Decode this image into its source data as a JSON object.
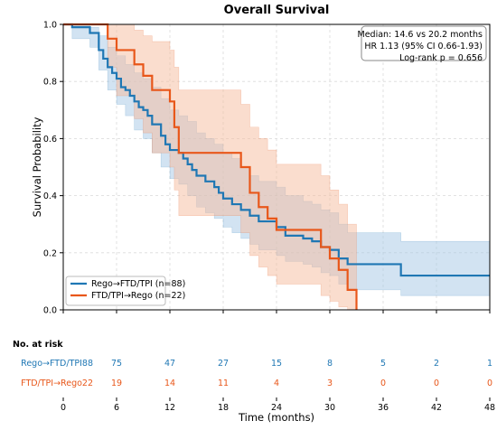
{
  "chart_data": {
    "type": "kaplan-meier",
    "title": "Overall Survival",
    "xlabel": "Time (months)",
    "ylabel": "Survival Probability",
    "xlim": [
      0,
      48
    ],
    "ylim": [
      0,
      1.0
    ],
    "yticks": [
      "0.0",
      "0.2",
      "0.4",
      "0.6",
      "0.8",
      "1.0"
    ],
    "xticks": [
      "0",
      "6",
      "12",
      "18",
      "24",
      "30",
      "36",
      "42",
      "48"
    ],
    "grid": true,
    "legend_position": "lower-left",
    "annotation": [
      "Median: 14.6 vs 20.2 months",
      "HR 1.13 (95% CI 0.66-1.93)",
      "Log-rank p = 0.656"
    ],
    "series": [
      {
        "name": "Rego→FTD/TPI (n=88)",
        "color": "#1f77b4",
        "band_color": "#a6c8e6",
        "points": [
          [
            0,
            1.0
          ],
          [
            1,
            0.99
          ],
          [
            3,
            0.97
          ],
          [
            4,
            0.91
          ],
          [
            4.5,
            0.88
          ],
          [
            5,
            0.85
          ],
          [
            5.5,
            0.83
          ],
          [
            6,
            0.81
          ],
          [
            6.5,
            0.78
          ],
          [
            7,
            0.77
          ],
          [
            7.5,
            0.75
          ],
          [
            8,
            0.73
          ],
          [
            8.5,
            0.71
          ],
          [
            9,
            0.7
          ],
          [
            9.5,
            0.68
          ],
          [
            10,
            0.65
          ],
          [
            11,
            0.61
          ],
          [
            11.5,
            0.58
          ],
          [
            12,
            0.56
          ],
          [
            13,
            0.55
          ],
          [
            13.5,
            0.53
          ],
          [
            14,
            0.51
          ],
          [
            14.5,
            0.49
          ],
          [
            15,
            0.47
          ],
          [
            16,
            0.45
          ],
          [
            17,
            0.43
          ],
          [
            17.5,
            0.41
          ],
          [
            18,
            0.39
          ],
          [
            19,
            0.37
          ],
          [
            20,
            0.35
          ],
          [
            21,
            0.33
          ],
          [
            22,
            0.31
          ],
          [
            24,
            0.29
          ],
          [
            25,
            0.26
          ],
          [
            27,
            0.25
          ],
          [
            28,
            0.24
          ],
          [
            29,
            0.22
          ],
          [
            30,
            0.21
          ],
          [
            31,
            0.18
          ],
          [
            32,
            0.16
          ],
          [
            37,
            0.16
          ],
          [
            38,
            0.12
          ],
          [
            48,
            0.12
          ]
        ],
        "ci_upper": [
          [
            0,
            1.0
          ],
          [
            3,
            0.99
          ],
          [
            4,
            0.96
          ],
          [
            5,
            0.92
          ],
          [
            6,
            0.89
          ],
          [
            7,
            0.86
          ],
          [
            8,
            0.83
          ],
          [
            9,
            0.81
          ],
          [
            10,
            0.78
          ],
          [
            11,
            0.74
          ],
          [
            12,
            0.7
          ],
          [
            13,
            0.68
          ],
          [
            14,
            0.66
          ],
          [
            15,
            0.62
          ],
          [
            16,
            0.6
          ],
          [
            17,
            0.58
          ],
          [
            18,
            0.55
          ],
          [
            19,
            0.53
          ],
          [
            20,
            0.5
          ],
          [
            21,
            0.47
          ],
          [
            22,
            0.45
          ],
          [
            24,
            0.43
          ],
          [
            25,
            0.4
          ],
          [
            27,
            0.38
          ],
          [
            28,
            0.37
          ],
          [
            29,
            0.35
          ],
          [
            30,
            0.34
          ],
          [
            31,
            0.3
          ],
          [
            32,
            0.27
          ],
          [
            37,
            0.27
          ],
          [
            38,
            0.24
          ],
          [
            48,
            0.24
          ]
        ],
        "ci_lower": [
          [
            0,
            1.0
          ],
          [
            1,
            0.95
          ],
          [
            3,
            0.92
          ],
          [
            4,
            0.84
          ],
          [
            5,
            0.77
          ],
          [
            6,
            0.72
          ],
          [
            7,
            0.68
          ],
          [
            8,
            0.63
          ],
          [
            9,
            0.6
          ],
          [
            10,
            0.55
          ],
          [
            11,
            0.5
          ],
          [
            12,
            0.46
          ],
          [
            13,
            0.44
          ],
          [
            14,
            0.4
          ],
          [
            15,
            0.36
          ],
          [
            16,
            0.34
          ],
          [
            17,
            0.32
          ],
          [
            18,
            0.29
          ],
          [
            19,
            0.27
          ],
          [
            20,
            0.25
          ],
          [
            21,
            0.23
          ],
          [
            22,
            0.21
          ],
          [
            24,
            0.19
          ],
          [
            25,
            0.17
          ],
          [
            27,
            0.16
          ],
          [
            28,
            0.15
          ],
          [
            29,
            0.13
          ],
          [
            30,
            0.12
          ],
          [
            31,
            0.09
          ],
          [
            32,
            0.07
          ],
          [
            37,
            0.07
          ],
          [
            38,
            0.05
          ],
          [
            48,
            0.05
          ]
        ]
      },
      {
        "name": "FTD/TPI→Rego (n=22)",
        "color": "#e8571a",
        "band_color": "#f6bb9d",
        "points": [
          [
            0,
            1.0
          ],
          [
            5,
            0.95
          ],
          [
            6,
            0.91
          ],
          [
            8,
            0.86
          ],
          [
            9,
            0.82
          ],
          [
            10,
            0.77
          ],
          [
            12,
            0.73
          ],
          [
            12.5,
            0.64
          ],
          [
            13,
            0.55
          ],
          [
            20,
            0.5
          ],
          [
            21,
            0.41
          ],
          [
            22,
            0.36
          ],
          [
            23,
            0.32
          ],
          [
            24,
            0.28
          ],
          [
            29,
            0.22
          ],
          [
            30,
            0.18
          ],
          [
            31,
            0.14
          ],
          [
            32,
            0.07
          ],
          [
            33,
            0.0
          ]
        ],
        "ci_upper": [
          [
            0,
            1.0
          ],
          [
            6,
            1.0
          ],
          [
            8,
            0.98
          ],
          [
            9,
            0.96
          ],
          [
            10,
            0.94
          ],
          [
            12,
            0.91
          ],
          [
            12.5,
            0.85
          ],
          [
            13,
            0.77
          ],
          [
            20,
            0.72
          ],
          [
            21,
            0.64
          ],
          [
            22,
            0.6
          ],
          [
            23,
            0.56
          ],
          [
            24,
            0.51
          ],
          [
            29,
            0.47
          ],
          [
            30,
            0.42
          ],
          [
            31,
            0.37
          ],
          [
            32,
            0.3
          ],
          [
            33,
            0.0
          ]
        ],
        "ci_lower": [
          [
            0,
            1.0
          ],
          [
            5,
            0.85
          ],
          [
            6,
            0.75
          ],
          [
            8,
            0.67
          ],
          [
            9,
            0.62
          ],
          [
            10,
            0.55
          ],
          [
            12,
            0.5
          ],
          [
            12.5,
            0.42
          ],
          [
            13,
            0.33
          ],
          [
            20,
            0.27
          ],
          [
            21,
            0.19
          ],
          [
            22,
            0.15
          ],
          [
            23,
            0.12
          ],
          [
            24,
            0.09
          ],
          [
            29,
            0.05
          ],
          [
            30,
            0.03
          ],
          [
            31,
            0.01
          ],
          [
            32,
            0.0
          ],
          [
            33,
            0.0
          ]
        ]
      }
    ],
    "risk_table": {
      "title": "No. at risk",
      "times": [
        0,
        6,
        12,
        18,
        24,
        30,
        36,
        42,
        48
      ],
      "rows": [
        {
          "label": "Rego→FTD/TPI88",
          "color": "#1f77b4",
          "counts": [
            "",
            "75",
            "47",
            "27",
            "15",
            "8",
            "5",
            "2",
            "1"
          ]
        },
        {
          "label": "FTD/TPI→Rego22",
          "color": "#e8571a",
          "counts": [
            "",
            "19",
            "14",
            "11",
            "4",
            "3",
            "0",
            "0",
            "0"
          ]
        }
      ]
    }
  }
}
